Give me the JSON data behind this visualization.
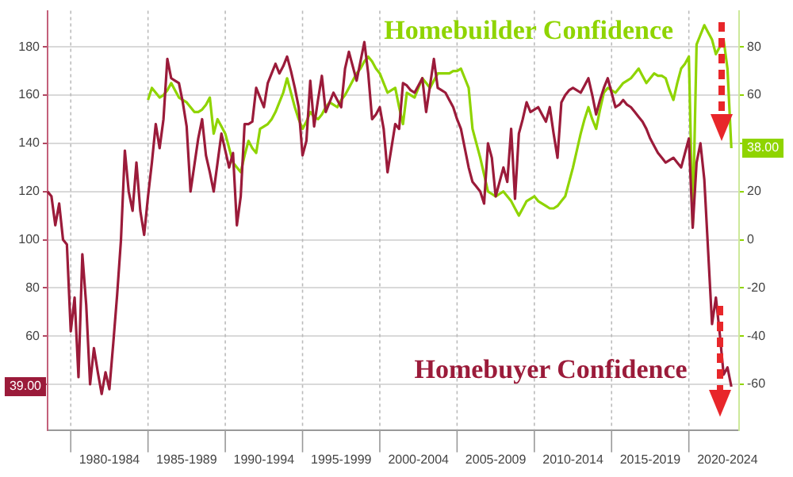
{
  "chart_data": {
    "type": "line",
    "categories": [
      null,
      null,
      null,
      null,
      null,
      null,
      null,
      null,
      null,
      null,
      null,
      null,
      null,
      null,
      null,
      null,
      "1980-1984",
      null,
      null,
      null,
      null,
      null,
      null,
      null,
      null,
      null,
      null,
      null,
      null,
      null,
      null,
      null,
      null,
      null,
      null,
      null,
      "1985-1989",
      null,
      null,
      null,
      null,
      null,
      null,
      null,
      null,
      null,
      null,
      null,
      null,
      null,
      null,
      null,
      null,
      null,
      null,
      null,
      "1990-1994",
      null,
      null,
      null,
      null,
      null,
      null,
      null,
      null,
      null,
      null,
      null,
      null,
      null,
      null,
      null,
      null,
      null,
      null,
      null,
      "1995-1999",
      null,
      null,
      null,
      null,
      null,
      null,
      null,
      null,
      null,
      null,
      null,
      null,
      null,
      null,
      null,
      null,
      null,
      null,
      null,
      "2000-2004",
      null,
      null,
      null,
      null,
      null,
      null,
      null,
      null,
      null,
      null,
      null,
      null,
      null,
      null,
      null,
      null,
      null,
      null,
      null,
      "2005-2009",
      null,
      null,
      null,
      null,
      null,
      null,
      null,
      null,
      null,
      null,
      null,
      null,
      null,
      null,
      null,
      null,
      null,
      null,
      null,
      "2010-2014",
      null,
      null,
      null,
      null,
      null,
      null,
      null,
      null,
      null,
      null,
      null,
      null,
      null,
      null,
      null,
      null,
      null,
      null,
      null,
      "2015-2019",
      null,
      null,
      null,
      null,
      null,
      null,
      null,
      null,
      null,
      null,
      null,
      null,
      null,
      null,
      null,
      null,
      null,
      null,
      null,
      "2020-2024",
      null,
      null,
      null
    ],
    "ylim": [
      21,
      195
    ],
    "yticks": [
      {
        "value": 40,
        "label": null
      },
      60,
      80,
      100,
      120,
      140,
      160,
      180
    ],
    "y2lim": [
      -79,
      95
    ],
    "y2ticks": [
      -60,
      -40,
      -20,
      0,
      20,
      {
        "value": 40,
        "label": null
      },
      60,
      80
    ],
    "annotations": [
      {
        "text": "39.00",
        "y": 39
      },
      {
        "text": "38.00",
        "y": 138
      }
    ],
    "grid": true,
    "legend": false,
    "marker": "none",
    "line_style": "solid",
    "series": [
      {
        "name": "Homebuyer Confidence",
        "color": "#9b1b3a",
        "values": [
          120,
          118,
          106,
          115,
          100,
          98,
          62,
          76,
          43,
          94,
          73,
          40,
          55,
          45,
          36,
          45,
          38,
          57,
          77,
          100,
          137,
          120,
          112,
          132,
          112,
          102,
          118,
          132,
          148,
          138,
          150,
          175,
          167,
          166,
          165,
          157,
          147,
          120,
          131,
          142,
          150,
          135,
          128,
          120,
          132,
          144,
          137,
          130,
          136,
          106,
          118,
          148,
          148,
          149,
          163,
          159,
          155,
          165,
          169,
          173,
          169,
          172,
          176,
          170,
          163,
          155,
          135,
          141,
          166,
          147,
          158,
          168,
          153,
          157,
          161,
          158,
          155,
          171,
          178,
          172,
          166,
          174,
          182,
          169,
          150,
          152,
          155,
          146,
          128,
          138,
          148,
          146,
          165,
          164,
          162,
          161,
          164,
          167,
          153,
          164,
          175,
          163,
          162,
          161,
          158,
          155,
          150,
          146,
          138,
          130,
          124,
          122,
          120,
          115,
          140,
          134,
          118,
          124,
          130,
          124,
          146,
          117,
          144,
          150,
          157,
          153,
          154,
          155,
          152,
          149,
          155,
          144,
          134,
          157,
          160,
          162,
          163,
          162,
          161,
          164,
          167,
          160,
          152,
          158,
          163,
          167,
          161,
          155,
          156,
          158,
          156,
          155,
          153,
          151,
          149,
          146,
          142,
          139,
          136,
          134,
          132,
          133,
          134,
          132,
          130,
          136,
          142,
          105,
          132,
          140,
          125,
          95,
          65,
          76,
          61,
          44,
          47,
          39,
          null,
          null
        ],
        "value_labels": [
          null,
          null,
          null,
          null,
          null,
          null,
          null,
          null,
          null,
          null,
          null,
          null,
          null,
          null,
          null,
          null,
          null,
          null,
          null,
          null,
          null,
          null,
          null,
          null,
          null,
          null,
          null,
          null,
          null,
          null,
          null,
          null,
          null,
          null,
          null,
          null,
          null,
          null,
          null,
          null,
          null,
          null,
          null,
          null,
          null,
          null,
          null,
          null,
          null,
          null,
          null,
          null,
          null,
          null,
          null,
          null,
          null,
          null,
          null,
          null,
          null,
          null,
          null,
          null,
          null,
          null,
          null,
          null,
          null,
          null,
          null,
          null,
          null,
          null,
          null,
          null,
          null,
          null,
          null,
          null,
          null,
          null,
          null,
          null,
          null,
          null,
          null,
          null,
          null,
          null,
          null,
          null,
          null,
          null,
          null,
          null,
          null,
          null,
          null,
          null,
          null,
          null,
          null,
          null,
          null,
          null,
          null,
          null,
          null,
          null,
          null,
          null,
          null,
          null,
          null,
          null,
          null,
          null,
          null,
          null,
          null,
          null,
          null,
          null,
          null,
          null,
          null,
          null,
          null,
          null,
          null,
          null,
          null,
          null,
          null,
          null,
          null,
          null,
          null,
          null,
          null,
          null,
          null,
          null,
          null,
          null,
          null,
          null,
          null,
          null,
          null,
          null,
          null,
          null,
          null,
          null,
          null,
          null,
          null,
          null,
          null,
          null,
          null,
          null,
          null,
          null,
          null,
          null,
          null,
          null,
          null,
          null,
          null,
          null,
          null,
          null,
          null,
          null,
          null,
          null
        ]
      },
      {
        "name": "Homebuilder Confidence",
        "color": "#8fd400",
        "axis": "y2",
        "values": [
          null,
          null,
          null,
          null,
          null,
          null,
          null,
          null,
          null,
          null,
          null,
          null,
          null,
          null,
          null,
          null,
          null,
          null,
          null,
          null,
          null,
          null,
          null,
          null,
          null,
          null,
          58,
          63,
          61,
          59,
          60,
          62,
          65,
          62,
          59,
          58,
          57,
          55,
          53,
          53,
          54,
          56,
          59,
          44,
          50,
          47,
          44,
          38,
          32,
          30,
          28,
          35,
          41,
          38,
          36,
          46,
          47,
          48,
          50,
          53,
          57,
          61,
          67,
          61,
          55,
          50,
          46,
          49,
          53,
          51,
          50,
          52,
          55,
          57,
          56,
          55,
          58,
          60,
          63,
          66,
          69,
          71,
          74,
          76,
          74,
          71,
          69,
          65,
          61,
          62,
          63,
          55,
          48,
          61,
          60,
          59,
          63,
          67,
          65,
          63,
          66,
          69,
          69,
          69,
          69,
          70,
          70,
          71,
          67,
          63,
          46,
          40,
          34,
          27,
          20,
          19,
          18,
          19,
          20,
          18,
          16,
          13,
          10,
          13,
          16,
          17,
          18,
          16,
          15,
          14,
          13,
          13,
          14,
          16,
          18,
          24,
          30,
          37,
          44,
          50,
          55,
          50,
          46,
          54,
          61,
          63,
          62,
          61,
          63,
          65,
          66,
          67,
          69,
          71,
          68,
          65,
          67,
          69,
          68,
          68,
          67,
          62,
          58,
          65,
          71,
          73,
          76,
          6,
          81,
          85,
          89,
          86,
          83,
          77,
          80,
          83,
          71,
          38,
          null,
          null
        ],
        "value_labels": [
          null,
          null,
          null,
          null,
          null,
          null,
          null,
          null,
          null,
          null,
          null,
          null,
          null,
          null,
          null,
          null,
          null,
          null,
          null,
          null,
          null,
          null,
          null,
          null,
          null,
          null,
          null,
          null,
          null,
          null,
          null,
          null,
          null,
          null,
          null,
          null,
          null,
          null,
          null,
          null,
          null,
          null,
          null,
          null,
          null,
          null,
          null,
          null,
          null,
          null,
          null,
          null,
          null,
          null,
          null,
          null,
          null,
          null,
          null,
          null,
          null,
          null,
          null,
          null,
          null,
          null,
          null,
          null,
          null,
          null,
          null,
          null,
          null,
          null,
          null,
          null,
          null,
          null,
          null,
          null,
          null,
          null,
          null,
          null,
          null,
          null,
          null,
          null,
          null,
          null,
          null,
          null,
          null,
          null,
          null,
          null,
          null,
          null,
          null,
          null,
          null,
          null,
          null,
          null,
          null,
          null,
          null,
          null,
          null,
          null,
          null,
          null,
          null,
          null,
          null,
          null,
          null,
          null,
          null,
          null,
          null,
          null,
          null,
          null,
          null,
          null,
          null,
          null,
          null,
          null,
          null,
          null,
          null,
          null,
          null,
          null,
          null,
          null,
          null,
          null,
          null,
          null,
          null,
          null,
          null,
          null,
          null,
          null,
          null,
          null,
          null,
          null,
          null,
          null,
          null,
          null,
          null,
          null,
          null,
          null,
          null,
          null,
          null,
          null,
          null,
          null,
          null,
          null,
          null,
          null,
          null,
          null,
          null,
          null,
          null,
          null,
          null,
          null,
          null,
          null
        ]
      }
    ]
  }
}
